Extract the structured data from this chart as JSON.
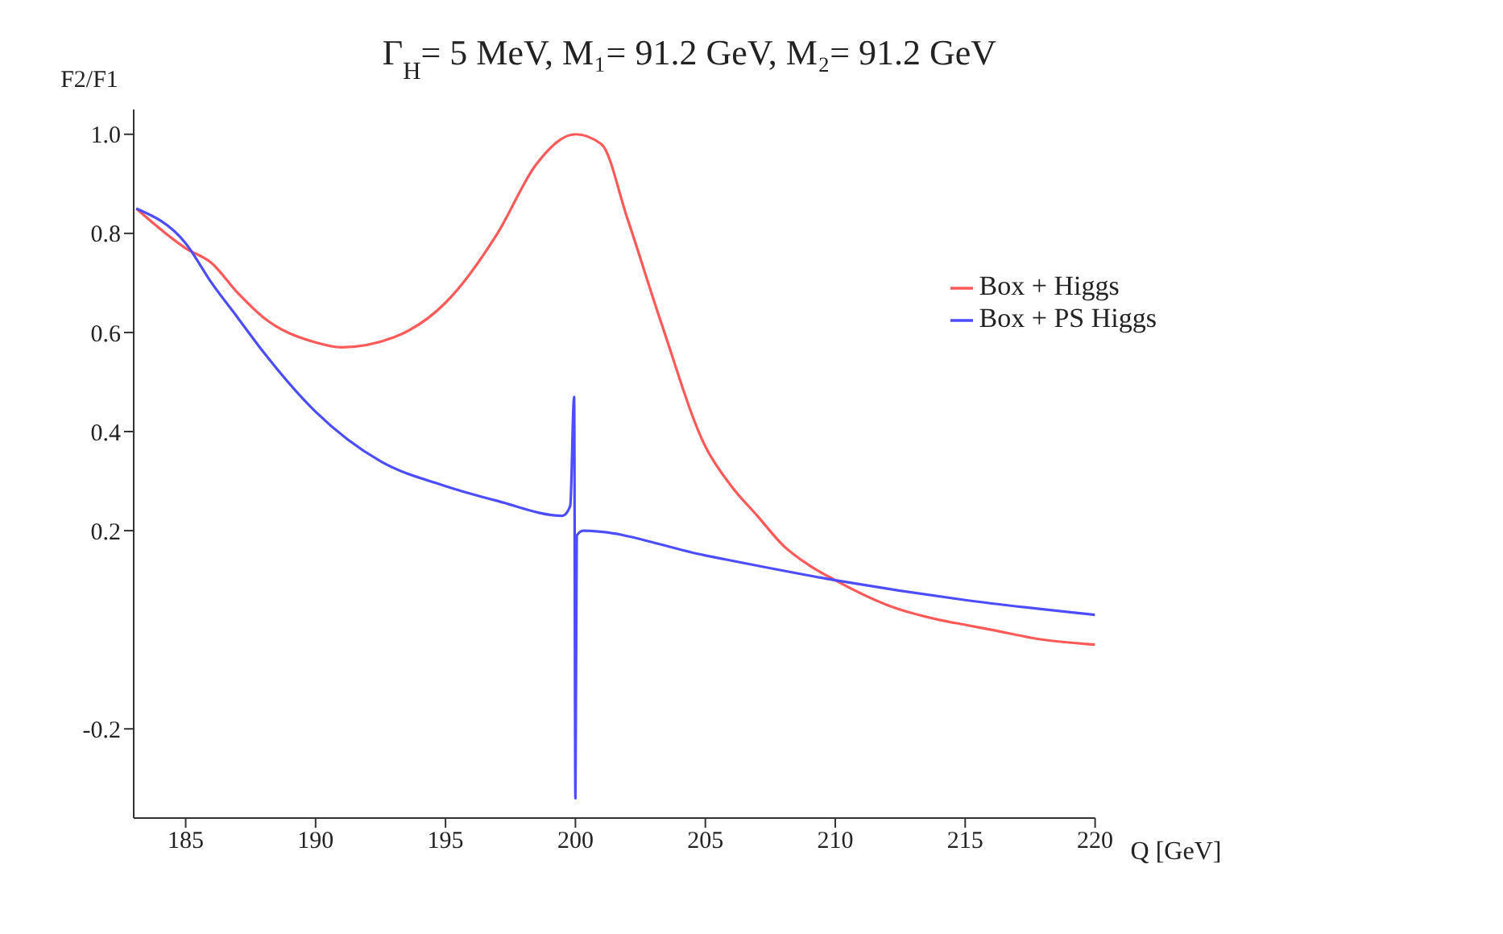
{
  "chart_data": {
    "type": "line",
    "title": "Γ$_{H}$= 5 MeV, M₁= 91.2 GeV, M₂= 91.2 GeV",
    "xlabel": "Q [GeV]",
    "ylabel": "F2/F1",
    "xlim": [
      183,
      220
    ],
    "xticks": [
      185,
      190,
      195,
      200,
      205,
      210,
      215,
      220
    ],
    "ylim": [
      -0.38,
      1.05
    ],
    "yticks": [
      -0.2,
      0.2,
      0.4,
      0.6,
      0.8,
      {
        "value": 1.0,
        "label": "1.0"
      }
    ],
    "grid": false,
    "legend": "top right",
    "marker": "none",
    "line_style": "solid",
    "series": [
      {
        "name": "Box + Higgs",
        "color": "#ff5a5a",
        "x": [
          183.1,
          185,
          186,
          187,
          188,
          190,
          191,
          193,
          195,
          197,
          198.5,
          200,
          201,
          202,
          203.3,
          205,
          206,
          207,
          208,
          209,
          210,
          212,
          214,
          215,
          216,
          218,
          220
        ],
        "values": [
          0.85,
          0.77,
          0.74,
          0.68,
          0.63,
          0.58,
          0.57,
          0.59,
          0.66,
          0.8,
          0.94,
          1.0,
          0.98,
          0.83,
          0.62,
          0.37,
          0.29,
          0.23,
          0.17,
          0.13,
          0.1,
          0.05,
          0.02,
          0.01,
          0.0,
          -0.02,
          -0.03
        ]
      },
      {
        "name": "Box + PS Higgs",
        "color": "#4d4dff",
        "x": [
          183.1,
          185,
          186,
          187,
          188,
          190,
          192.5,
          195,
          197,
          199.5,
          199.8,
          199.95,
          200,
          200.05,
          200.3,
          205,
          210,
          215,
          220
        ],
        "values": [
          0.85,
          0.78,
          0.7,
          0.63,
          0.56,
          0.44,
          0.34,
          0.29,
          0.26,
          0.23,
          0.25,
          0.47,
          -0.34,
          0.19,
          0.2,
          0.15,
          0.1,
          0.06,
          0.03
        ]
      }
    ]
  }
}
